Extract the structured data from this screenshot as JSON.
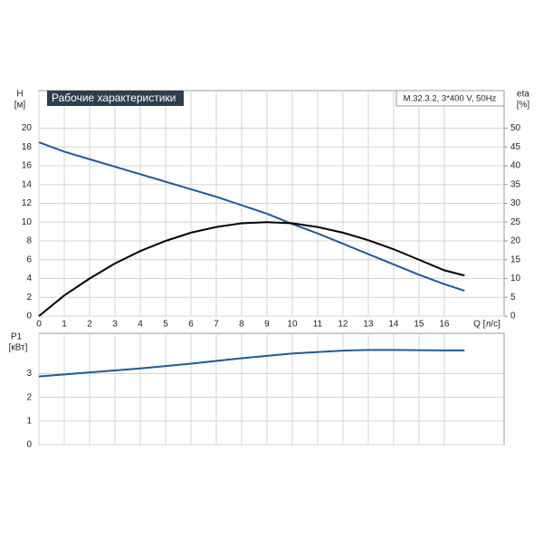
{
  "chart_data": [
    {
      "type": "line",
      "title": "Рабочие характеристики",
      "subtitle": "M.32.3.2, 3*400 V, 50Hz",
      "ylabel": "H",
      "yunit": "[м]",
      "y2label": "eta",
      "y2unit": "[%]",
      "xlabel": "Q [л/с]",
      "x": [
        0,
        1,
        2,
        3,
        4,
        5,
        6,
        7,
        8,
        9,
        10,
        11,
        12,
        13,
        14,
        15,
        16,
        16.8
      ],
      "series": [
        {
          "color": "#1f5a9a",
          "values": [
            18.5,
            17.5,
            16.7,
            15.9,
            15.1,
            14.3,
            13.5,
            12.7,
            11.8,
            10.9,
            9.8,
            8.8,
            7.7,
            6.6,
            5.5,
            4.4,
            3.4,
            2.7
          ]
        },
        {
          "color": "#000000",
          "axis": "y2",
          "values": [
            0,
            5.5,
            10,
            14,
            17.3,
            20,
            22.2,
            23.7,
            24.7,
            25,
            24.7,
            23.7,
            22.2,
            20.2,
            17.8,
            15,
            12.2,
            10.8
          ]
        }
      ],
      "xlim": [
        0,
        18.36
      ],
      "xticks": [
        0,
        1,
        2,
        3,
        4,
        5,
        6,
        7,
        8,
        9,
        10,
        11,
        12,
        13,
        14,
        15,
        16
      ],
      "ylim": [
        0,
        24
      ],
      "yticks": [
        0,
        2,
        4,
        6,
        8,
        10,
        12,
        14,
        16,
        18,
        20
      ],
      "y2lim": [
        0,
        60
      ],
      "y2ticks": [
        0,
        5,
        10,
        15,
        20,
        25,
        30,
        35,
        40,
        45,
        50
      ],
      "grid": true
    },
    {
      "type": "line",
      "ylabel": "P1",
      "yunit": "[кВт]",
      "x": [
        0,
        2,
        4,
        6,
        8,
        10,
        12,
        13,
        14,
        16,
        16.8
      ],
      "series": [
        {
          "color": "#1f5a9a",
          "values": [
            2.88,
            3.05,
            3.22,
            3.42,
            3.65,
            3.85,
            3.97,
            4.0,
            4.0,
            3.98,
            3.98
          ]
        }
      ],
      "xlim": [
        0,
        18.36
      ],
      "ylim": [
        0,
        4.7
      ],
      "yticks": [
        0,
        1,
        2,
        3
      ],
      "grid": true
    }
  ]
}
